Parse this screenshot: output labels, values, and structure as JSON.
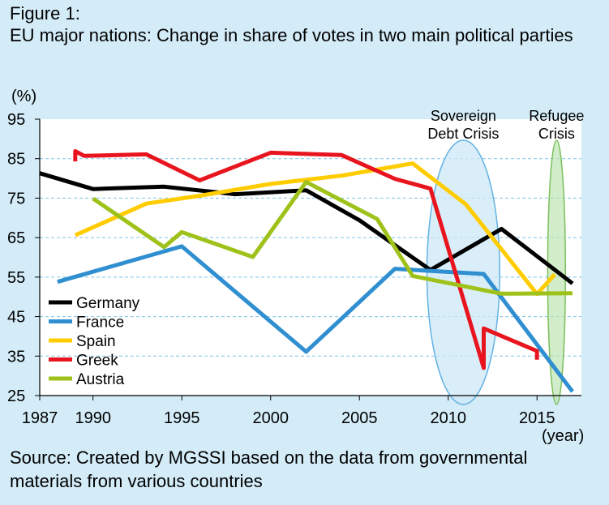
{
  "figure_label": "Figure 1:",
  "title": "EU major nations: Change in share of votes in two main political parties",
  "source": "Source: Created by MGSSI based on the data from governmental materials from various countries",
  "chart_data": {
    "type": "line",
    "ylabel": "(%)",
    "xlabel": "(year)",
    "xlim": [
      1987,
      2017.5
    ],
    "ylim": [
      25,
      95
    ],
    "x_ticks": [
      1987,
      1990,
      1995,
      2000,
      2005,
      2010,
      2015
    ],
    "y_ticks": [
      95,
      85,
      75,
      65,
      55,
      45,
      35,
      25
    ],
    "grid": true,
    "legend_position": "bottom-left",
    "series": [
      {
        "name": "Germany",
        "color": "#000000",
        "points": [
          [
            1987,
            81.3
          ],
          [
            1990,
            77.3
          ],
          [
            1994,
            77.9
          ],
          [
            1998,
            76.0
          ],
          [
            2002,
            77.0
          ],
          [
            2005,
            69.4
          ],
          [
            2009,
            56.8
          ],
          [
            2013,
            67.2
          ],
          [
            2017,
            53.4
          ]
        ]
      },
      {
        "name": "France",
        "color": "#2f8fd0",
        "points": [
          [
            1988,
            53.8
          ],
          [
            1995,
            62.8
          ],
          [
            2002,
            36.1
          ],
          [
            2007,
            57.1
          ],
          [
            2012,
            55.8
          ],
          [
            2017,
            26.0
          ]
        ]
      },
      {
        "name": "Spain",
        "color": "#ffcc00",
        "points": [
          [
            1989,
            65.6
          ],
          [
            1993,
            73.6
          ],
          [
            1996,
            75.6
          ],
          [
            2000,
            78.6
          ],
          [
            2004,
            80.7
          ],
          [
            2008,
            83.8
          ],
          [
            2011,
            73.4
          ],
          [
            2015,
            50.7
          ],
          [
            2016,
            55.7
          ]
        ]
      },
      {
        "name": "Greek",
        "color": "#e8151e",
        "points": [
          [
            1989,
            84.3
          ],
          [
            1989,
            86.9
          ],
          [
            1989.5,
            85.7
          ],
          [
            1993,
            86.1
          ],
          [
            1996,
            79.5
          ],
          [
            2000,
            86.5
          ],
          [
            2004,
            85.9
          ],
          [
            2007,
            79.9
          ],
          [
            2009,
            77.4
          ],
          [
            2012,
            32.0
          ],
          [
            2012,
            42.0
          ],
          [
            2015,
            36.3
          ],
          [
            2015,
            34.1
          ]
        ]
      },
      {
        "name": "Austria",
        "color": "#9ec21a",
        "points": [
          [
            1990,
            74.9
          ],
          [
            1994,
            62.6
          ],
          [
            1995,
            66.4
          ],
          [
            1999,
            60.1
          ],
          [
            2002,
            79.1
          ],
          [
            2006,
            69.7
          ],
          [
            2008,
            55.3
          ],
          [
            2013,
            50.8
          ],
          [
            2017,
            50.9
          ]
        ]
      }
    ],
    "annotations": [
      {
        "label_lines": [
          "Sovereign",
          "Debt Crisis"
        ],
        "x_range": [
          2008.8,
          2012.9
        ],
        "color": "#63b3e3"
      },
      {
        "label_lines": [
          "Refugee",
          "Crisis"
        ],
        "x_range": [
          2015.6,
          2016.6
        ],
        "color": "#7cbf5c"
      }
    ]
  }
}
